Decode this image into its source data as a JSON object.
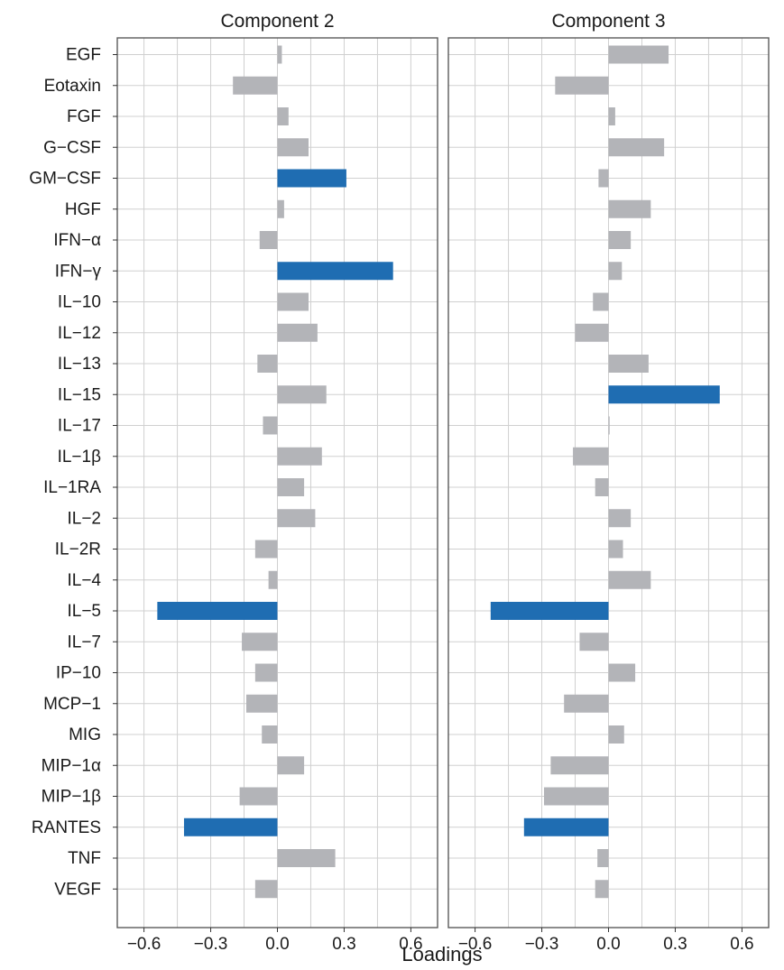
{
  "chart_data": {
    "type": "bar",
    "orientation": "horizontal",
    "xlabel": "Loadings",
    "xlim": [
      -0.72,
      0.72
    ],
    "xticks": [
      -0.6,
      -0.3,
      0.0,
      0.3,
      0.6
    ],
    "xtick_labels": [
      "−0.6",
      "−0.3",
      "0.0",
      "0.3",
      "0.6"
    ],
    "grid": true,
    "colors": {
      "highlight": "#1f6db2",
      "default": "#b3b4b8"
    },
    "categories": [
      "EGF",
      "Eotaxin",
      "FGF",
      "G−CSF",
      "GM−CSF",
      "HGF",
      "IFN−α",
      "IFN−γ",
      "IL−10",
      "IL−12",
      "IL−13",
      "IL−15",
      "IL−17",
      "IL−1β",
      "IL−1RA",
      "IL−2",
      "IL−2R",
      "IL−4",
      "IL−5",
      "IL−7",
      "IP−10",
      "MCP−1",
      "MIG",
      "MIP−1α",
      "MIP−1β",
      "RANTES",
      "TNF",
      "VEGF"
    ],
    "panels": [
      {
        "title": "Component 2",
        "values": [
          0.02,
          -0.2,
          0.05,
          0.14,
          0.31,
          0.03,
          -0.08,
          0.52,
          0.14,
          0.18,
          -0.09,
          0.22,
          -0.065,
          0.2,
          0.12,
          0.17,
          -0.1,
          -0.04,
          -0.54,
          -0.16,
          -0.1,
          -0.14,
          -0.07,
          0.12,
          -0.17,
          -0.42,
          0.26,
          -0.1
        ],
        "highlight": [
          false,
          false,
          false,
          false,
          true,
          false,
          false,
          true,
          false,
          false,
          false,
          false,
          false,
          false,
          false,
          false,
          false,
          false,
          true,
          false,
          false,
          false,
          false,
          false,
          false,
          true,
          false,
          false
        ]
      },
      {
        "title": "Component 3",
        "values": [
          0.27,
          -0.24,
          0.03,
          0.25,
          -0.045,
          0.19,
          0.1,
          0.06,
          -0.07,
          -0.15,
          0.18,
          0.5,
          0.005,
          -0.16,
          -0.06,
          0.1,
          0.065,
          0.19,
          -0.53,
          -0.13,
          0.12,
          -0.2,
          0.07,
          -0.26,
          -0.29,
          -0.38,
          -0.05,
          -0.06
        ],
        "highlight": [
          false,
          false,
          false,
          false,
          false,
          false,
          false,
          false,
          false,
          false,
          false,
          true,
          false,
          false,
          false,
          false,
          false,
          false,
          true,
          false,
          false,
          false,
          false,
          false,
          false,
          true,
          false,
          false
        ]
      }
    ]
  }
}
